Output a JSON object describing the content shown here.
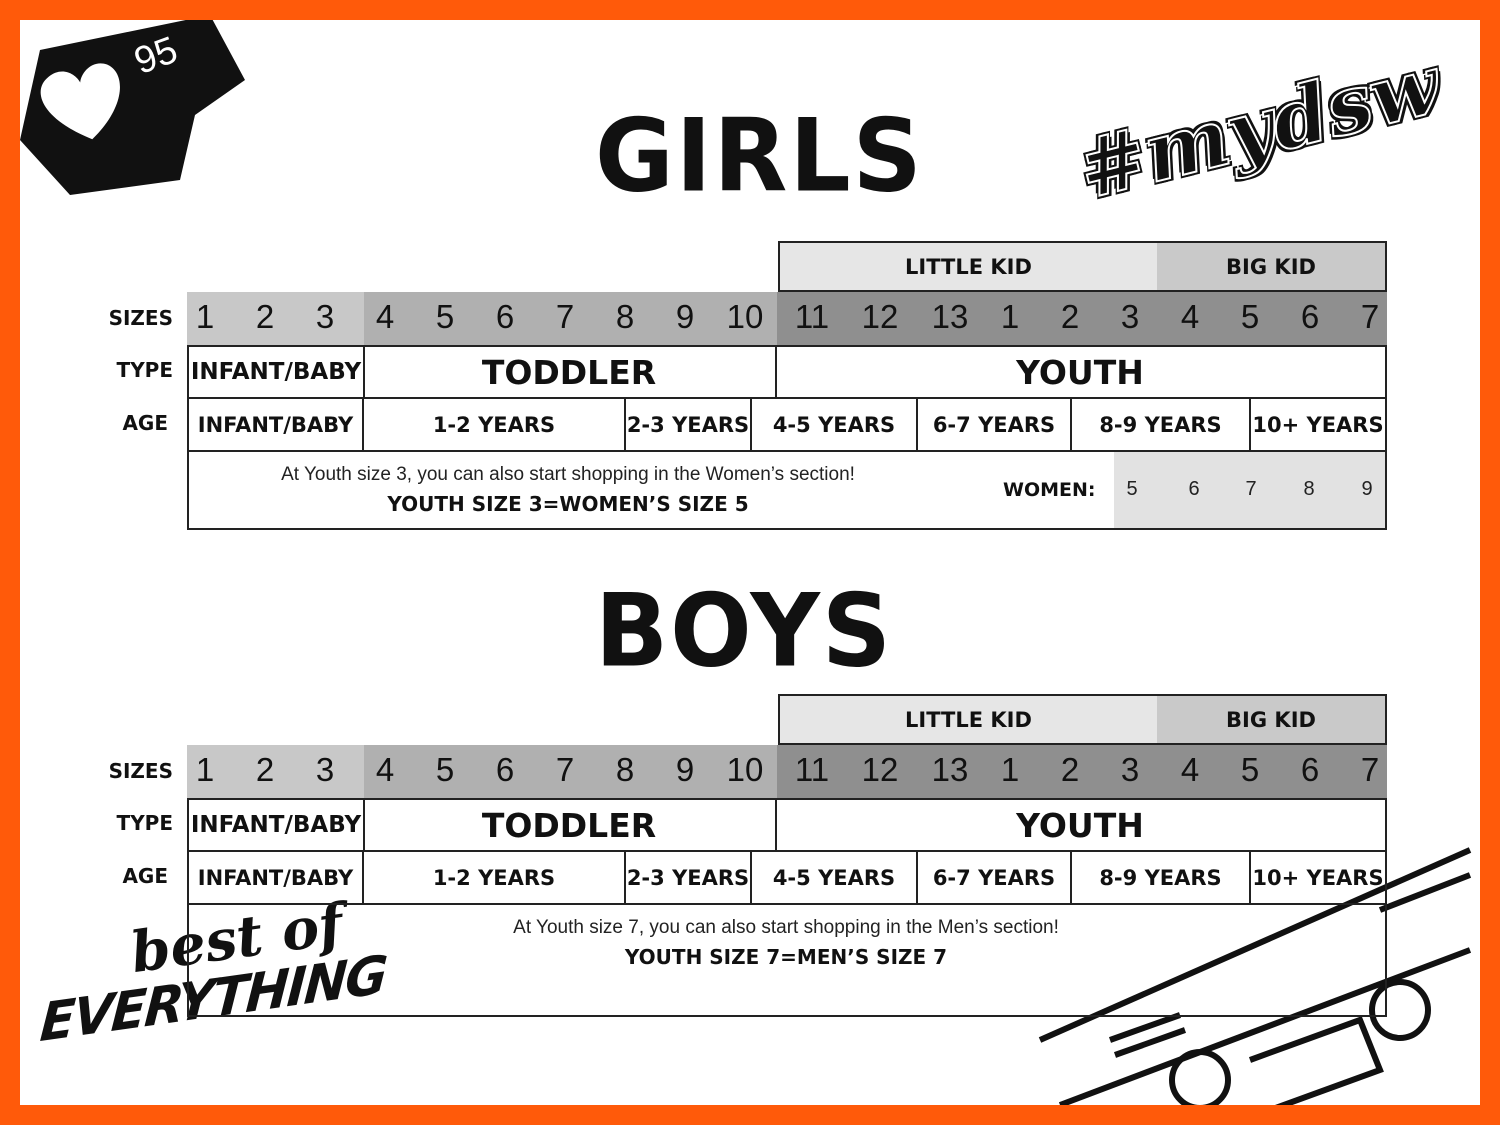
{
  "badge": {
    "icon": "heart-icon",
    "count": "95"
  },
  "logo_hashtag": "#mydsw",
  "logo_best": {
    "line1": "best of",
    "line2": "EVERYTHING"
  },
  "colors": {
    "frame": "#ff5a0a",
    "sizes_infant": "#c8c8c8",
    "sizes_toddler": "#b0b0b0",
    "sizes_youth": "#8f8f8f",
    "little_kid": "#e6e6e6",
    "big_kid": "#c9c9c9",
    "women_sizes": "#e2e2e2"
  },
  "row_labels": {
    "sizes": "SIZES",
    "type": "TYPE",
    "age": "AGE"
  },
  "sections": [
    {
      "title": "GIRLS",
      "little_kid": "LITTLE KID",
      "big_kid": "BIG KID",
      "sizes": [
        "1",
        "2",
        "3",
        "4",
        "5",
        "6",
        "7",
        "8",
        "9",
        "10",
        "11",
        "12",
        "13",
        "1",
        "2",
        "3",
        "4",
        "5",
        "6",
        "7"
      ],
      "types": [
        "INFANT/BABY",
        "TODDLER",
        "YOUTH"
      ],
      "ages": [
        "INFANT/BABY",
        "1-2 YEARS",
        "2-3 YEARS",
        "4-5 YEARS",
        "6-7 YEARS",
        "8-9 YEARS",
        "10+ YEARS"
      ],
      "note": "At Youth size 3, you can also start shopping in the Women’s section!",
      "note_bold": "YOUTH SIZE 3=WOMEN’S SIZE 5",
      "women_label": "WOMEN:",
      "women_sizes": [
        "5",
        "6",
        "7",
        "8",
        "9"
      ]
    },
    {
      "title": "BOYS",
      "little_kid": "LITTLE KID",
      "big_kid": "BIG KID",
      "sizes": [
        "1",
        "2",
        "3",
        "4",
        "5",
        "6",
        "7",
        "8",
        "9",
        "10",
        "11",
        "12",
        "13",
        "1",
        "2",
        "3",
        "4",
        "5",
        "6",
        "7"
      ],
      "types": [
        "INFANT/BABY",
        "TODDLER",
        "YOUTH"
      ],
      "ages": [
        "INFANT/BABY",
        "1-2 YEARS",
        "2-3 YEARS",
        "4-5 YEARS",
        "6-7 YEARS",
        "8-9 YEARS",
        "10+ YEARS"
      ],
      "note": "At Youth size 7, you can also start shopping in the Men’s section!",
      "note_bold": "YOUTH SIZE 7=MEN’S SIZE 7"
    }
  ]
}
